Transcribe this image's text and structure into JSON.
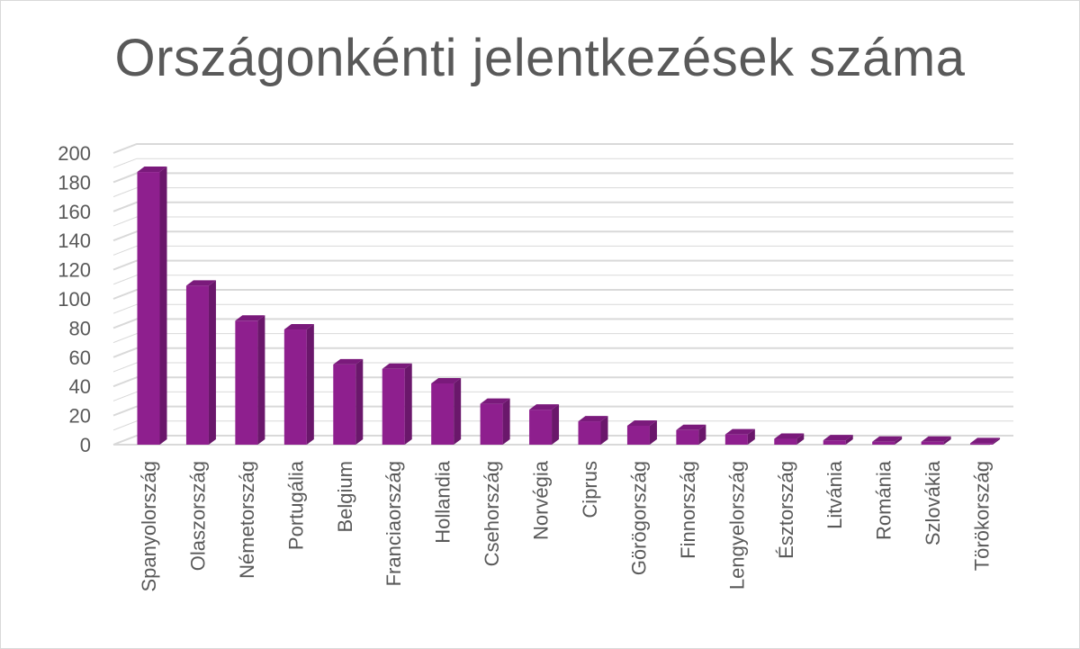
{
  "chart_data": {
    "type": "bar",
    "title": "Országonkénti jelentkezések száma",
    "xlabel": "",
    "ylabel": "",
    "ylim": [
      0,
      200
    ],
    "ytick_step": 20,
    "yticks": [
      "0",
      "20",
      "40",
      "60",
      "80",
      "100",
      "120",
      "140",
      "160",
      "180",
      "200"
    ],
    "grid": true,
    "legend": "none",
    "style": "3d-column",
    "categories": [
      "Spanyolország",
      "Olaszország",
      "Németország",
      "Portugália",
      "Belgium",
      "Franciaország",
      "Hollandia",
      "Csehország",
      "Norvégia",
      "Ciprus",
      "Görögország",
      "Finnország",
      "Lengyelország",
      "Észtország",
      "Litvánia",
      "Románia",
      "Szlovákia",
      "Törökország"
    ],
    "values": [
      187,
      109,
      85,
      79,
      55,
      52,
      42,
      28,
      24,
      16,
      13,
      10,
      7,
      4,
      3,
      2,
      2,
      1
    ],
    "colors": {
      "bar_front": "#8e1f8e",
      "bar_side": "#6a176b",
      "bar_top": "#7a1a7b",
      "grid": "#d9d9d9",
      "text": "#595959"
    }
  }
}
